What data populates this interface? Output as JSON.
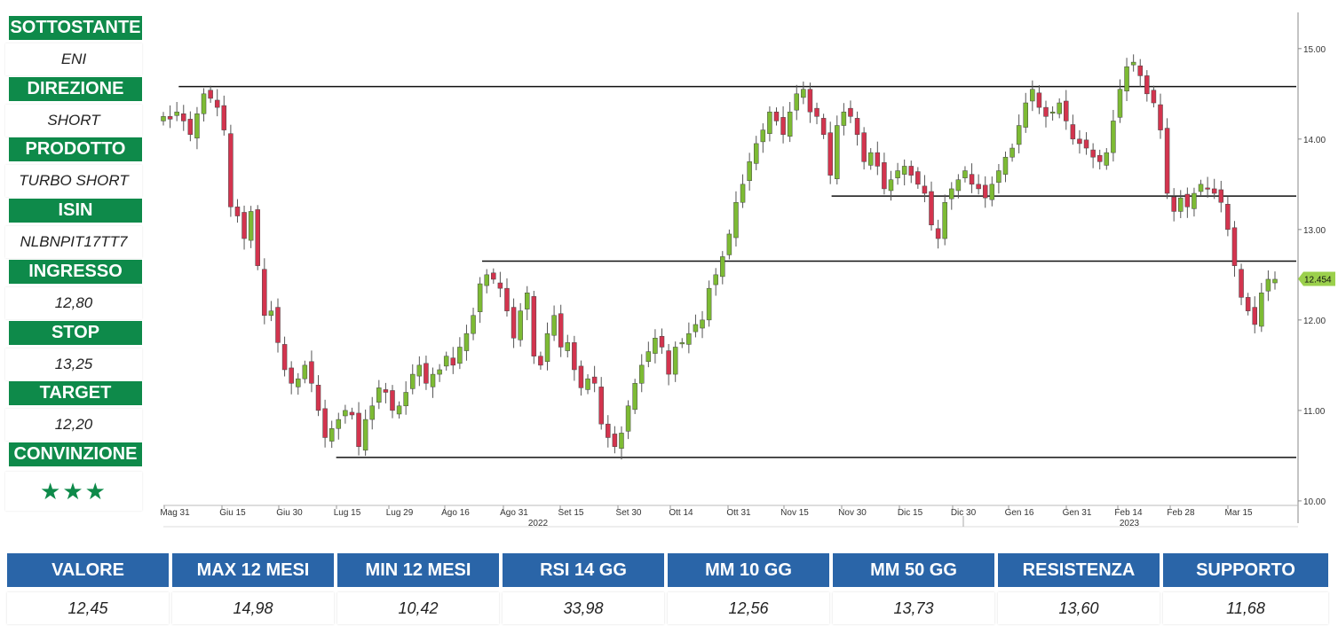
{
  "sidebar": {
    "items": [
      {
        "label": "SOTTOSTANTE",
        "value": "ENI"
      },
      {
        "label": "DIREZIONE",
        "value": "SHORT"
      },
      {
        "label": "PRODOTTO",
        "value": "TURBO SHORT"
      },
      {
        "label": "ISIN",
        "value": "NLBNPIT17TT7"
      },
      {
        "label": "INGRESSO",
        "value": "12,80"
      },
      {
        "label": "STOP",
        "value": "13,25"
      },
      {
        "label": "TARGET",
        "value": "12,20"
      },
      {
        "label": "CONVINZIONE",
        "value": "★★★"
      }
    ]
  },
  "bottom": {
    "headers": [
      "VALORE",
      "MAX 12 MESI",
      "MIN 12 MESI",
      "RSI 14 GG",
      "MM 10 GG",
      "MM 50 GG",
      "RESISTENZA",
      "SUPPORTO"
    ],
    "values": [
      "12,45",
      "14,98",
      "10,42",
      "33,98",
      "12,56",
      "13,73",
      "13,60",
      "11,68"
    ]
  },
  "colors": {
    "green_header": "#0e8a4a",
    "blue_header": "#2a65a8",
    "candle_up": "#7dbb34",
    "candle_down": "#d3344e",
    "price_tag": "#9bd04c"
  },
  "chart_data": {
    "type": "candlestick",
    "y_ticks": [
      "15.00",
      "14.00",
      "13.00",
      "12.00",
      "11.00",
      "10.00"
    ],
    "ylim": [
      9.95,
      15.4
    ],
    "x_tick_labels": [
      "Mag 31",
      "Giu 15",
      "Giu 30",
      "Lug 15",
      "Lug 29",
      "Ago 16",
      "Ago 31",
      "Set 15",
      "Set 30",
      "Ott 14",
      "Ott 31",
      "Nov 15",
      "Nov 30",
      "Dic 15",
      "Dic 30",
      "Gen 16",
      "Gen 31",
      "Feb 14",
      "Feb 28",
      "Mar 15"
    ],
    "year_labels": [
      "2022",
      "2023"
    ],
    "last_price": "12.454",
    "hlines": [
      {
        "y": 14.58,
        "from": "2022-06-04",
        "to": "end"
      },
      {
        "y": 13.37,
        "from": "2022-11-21",
        "to": "end"
      },
      {
        "y": 12.65,
        "from": "2022-08-22",
        "to": "end"
      },
      {
        "y": 10.48,
        "from": "2022-07-15",
        "to": "end"
      }
    ],
    "close_series": [
      14.25,
      14.22,
      14.3,
      14.2,
      14.05,
      14.28,
      14.5,
      14.45,
      14.35,
      14.1,
      13.25,
      13.15,
      12.9,
      13.2,
      12.6,
      12.05,
      12.1,
      11.75,
      11.45,
      11.3,
      11.35,
      11.5,
      11.3,
      11.0,
      10.7,
      10.8,
      10.9,
      11.0,
      10.95,
      10.6,
      10.9,
      11.05,
      11.25,
      11.2,
      11.0,
      11.05,
      11.2,
      11.4,
      11.5,
      11.3,
      11.4,
      11.45,
      11.6,
      11.5,
      11.7,
      11.85,
      12.05,
      12.4,
      12.5,
      12.45,
      12.35,
      12.1,
      11.8,
      12.1,
      12.3,
      11.6,
      11.5,
      11.85,
      12.05,
      11.7,
      11.75,
      11.45,
      11.25,
      11.35,
      11.3,
      10.85,
      10.7,
      10.6,
      10.75,
      11.05,
      11.3,
      11.5,
      11.65,
      11.8,
      11.7,
      11.4,
      11.7,
      11.75,
      11.85,
      11.95,
      12.0,
      12.35,
      12.5,
      12.7,
      12.95,
      13.3,
      13.5,
      13.75,
      13.95,
      14.1,
      14.3,
      14.2,
      14.05,
      14.3,
      14.5,
      14.55,
      14.3,
      14.25,
      14.05,
      13.6,
      14.15,
      14.3,
      14.25,
      14.05,
      13.75,
      13.85,
      13.7,
      13.45,
      13.55,
      13.65,
      13.7,
      13.6,
      13.5,
      13.4,
      13.05,
      12.9,
      13.3,
      13.45,
      13.55,
      13.65,
      13.5,
      13.45,
      13.35,
      13.5,
      13.65,
      13.8,
      13.9,
      14.15,
      14.4,
      14.55,
      14.35,
      14.25,
      14.3,
      14.4,
      14.2,
      14.0,
      13.95,
      13.9,
      13.8,
      13.75,
      13.85,
      14.2,
      14.55,
      14.8,
      14.85,
      14.7,
      14.5,
      14.4,
      14.1,
      13.4,
      13.2,
      13.35,
      13.25,
      13.4,
      13.5,
      13.45,
      13.4,
      13.3,
      13.0,
      12.6,
      12.25,
      12.1,
      11.95,
      12.3,
      12.45,
      12.45
    ]
  }
}
